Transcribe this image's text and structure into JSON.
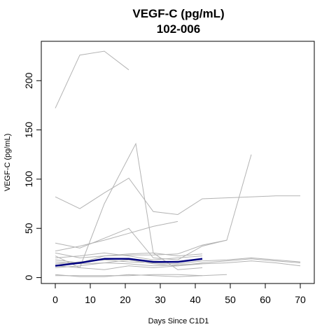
{
  "chart_data": {
    "type": "line",
    "title": "VEGF-C (pg/mL)",
    "subtitle": "102-006",
    "xlabel": "Days Since C1D1",
    "ylabel": "VEGF-C (pg/mL)",
    "xlim": [
      -4,
      74
    ],
    "ylim": [
      -6,
      240
    ],
    "xticks": [
      0,
      10,
      20,
      30,
      40,
      50,
      60,
      70
    ],
    "yticks": [
      0,
      50,
      100,
      150,
      200
    ],
    "grid": false,
    "colors": {
      "highlight": "#000080",
      "others": "#b3b3b3"
    },
    "highlight": {
      "name": "102-006",
      "x": [
        0,
        7,
        14,
        21,
        28,
        35,
        42
      ],
      "y": [
        12,
        15,
        19,
        19,
        16,
        16,
        19
      ]
    },
    "series": [
      {
        "x": [
          0,
          7,
          14,
          21
        ],
        "y": [
          172,
          226,
          230,
          211
        ]
      },
      {
        "x": [
          0,
          7,
          14,
          21,
          28,
          35,
          42,
          49,
          56,
          63,
          70
        ],
        "y": [
          82,
          70,
          86,
          101,
          67,
          64,
          80,
          81,
          82,
          83,
          83
        ]
      },
      {
        "x": [
          0,
          7,
          14,
          21,
          28,
          35,
          42,
          49,
          56
        ],
        "y": [
          35,
          30,
          40,
          50,
          20,
          18,
          32,
          38,
          125
        ]
      },
      {
        "x": [
          0,
          7,
          14,
          23,
          28,
          35,
          42
        ],
        "y": [
          22,
          10,
          75,
          136,
          25,
          8,
          10
        ]
      },
      {
        "x": [
          0,
          7,
          14,
          21,
          28,
          35
        ],
        "y": [
          27,
          32,
          38,
          45,
          52,
          57
        ]
      },
      {
        "x": [
          0,
          7,
          14,
          21,
          28,
          35,
          42,
          49
        ],
        "y": [
          25,
          20,
          22,
          23,
          23,
          24,
          33,
          38
        ]
      },
      {
        "x": [
          0,
          7,
          14,
          21,
          28,
          35,
          42
        ],
        "y": [
          20,
          22,
          25,
          22,
          18,
          20,
          22
        ]
      },
      {
        "x": [
          0,
          7,
          14,
          21,
          28,
          35,
          42,
          49,
          56,
          63,
          70
        ],
        "y": [
          10,
          12,
          15,
          18,
          14,
          12,
          15,
          17,
          19,
          17,
          15
        ]
      },
      {
        "x": [
          0,
          7,
          14,
          21,
          28,
          35,
          42,
          49,
          56,
          63,
          70
        ],
        "y": [
          14,
          16,
          18,
          16,
          15,
          14,
          17,
          18,
          20,
          18,
          16
        ]
      },
      {
        "x": [
          0,
          7,
          14,
          21,
          28,
          35,
          42,
          49,
          56,
          63,
          70
        ],
        "y": [
          12,
          10,
          8,
          12,
          10,
          12,
          14,
          15,
          17,
          15,
          12
        ]
      },
      {
        "x": [
          0,
          7,
          14,
          21,
          28,
          35,
          42
        ],
        "y": [
          18,
          15,
          22,
          24,
          25,
          22,
          24
        ]
      },
      {
        "x": [
          0,
          7,
          14,
          21,
          28,
          35,
          42,
          49
        ],
        "y": [
          2,
          2,
          2,
          2,
          3,
          3,
          2,
          3
        ]
      },
      {
        "x": [
          0,
          7,
          14,
          21,
          28,
          35,
          42
        ],
        "y": [
          3,
          1,
          1,
          3,
          2,
          1,
          2
        ]
      },
      {
        "x": [
          0,
          7,
          14,
          21,
          28,
          35,
          42
        ],
        "y": [
          16,
          14,
          15,
          14,
          12,
          13,
          14
        ]
      }
    ]
  }
}
